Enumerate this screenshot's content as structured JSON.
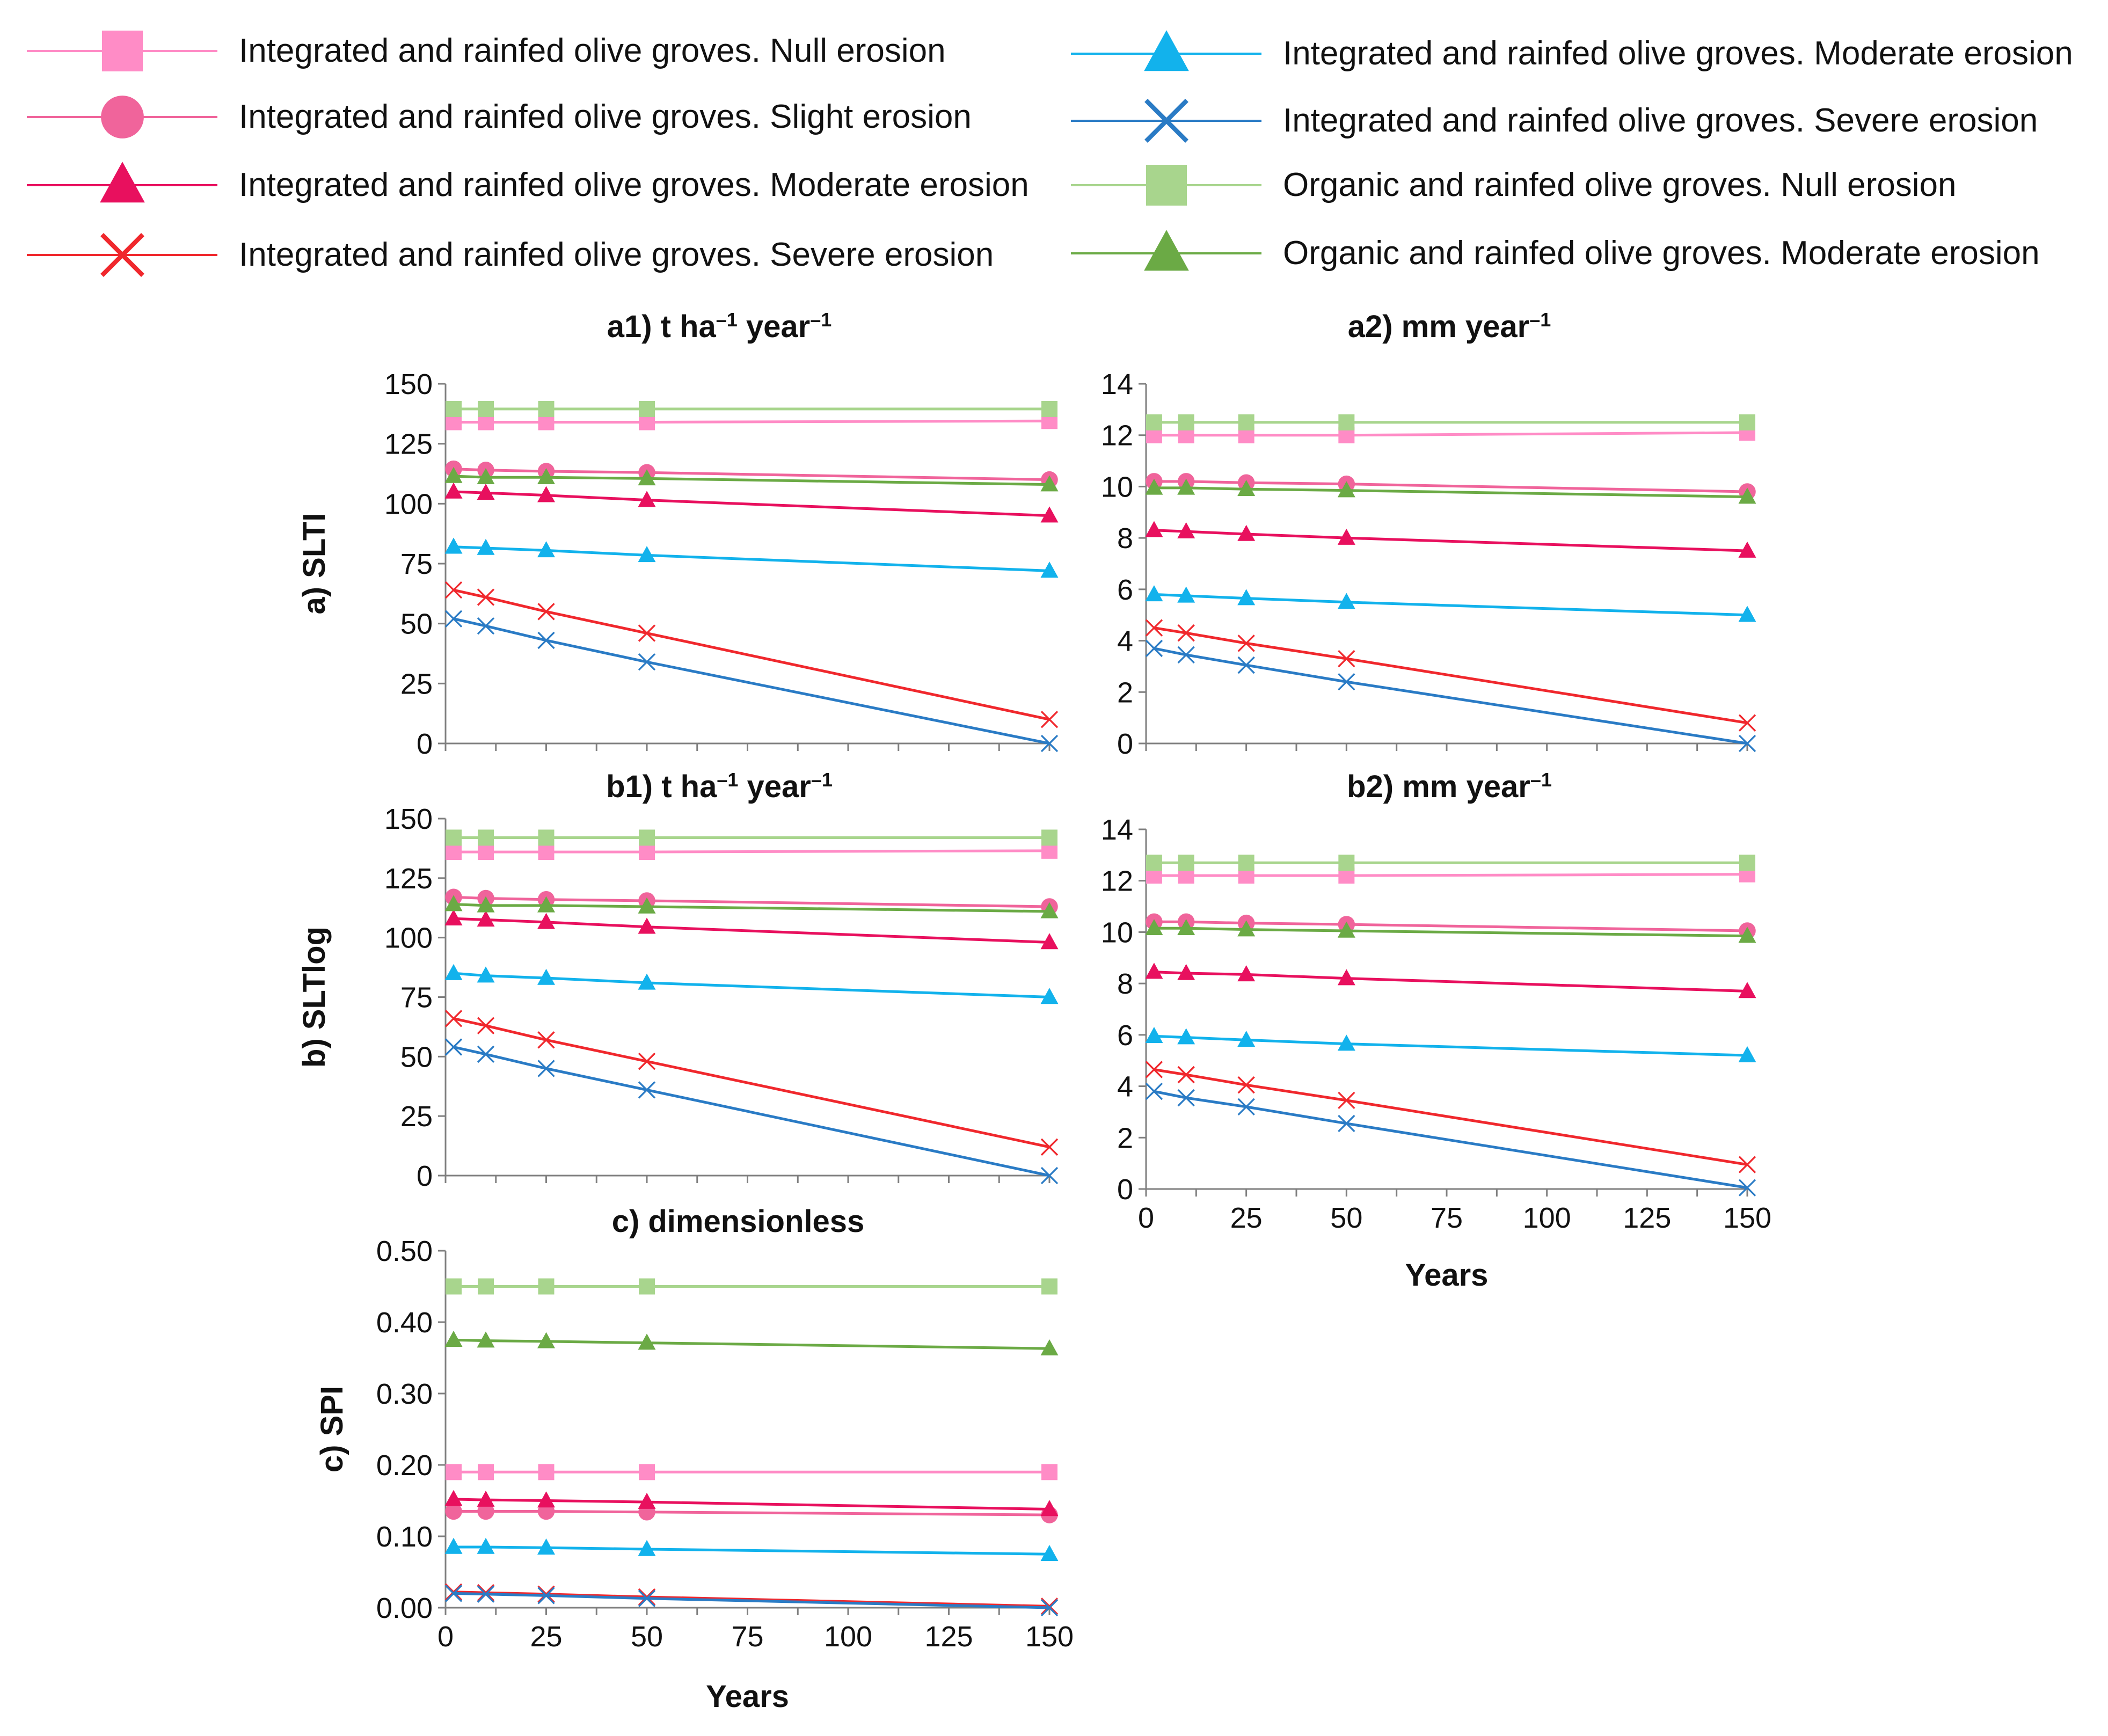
{
  "legend": [
    {
      "id": "int_null",
      "label": "Integrated and rainfed olive groves. Null erosion",
      "color": "#FF8CC6",
      "marker": "square"
    },
    {
      "id": "int_slight",
      "label": "Integrated and rainfed olive groves. Slight erosion",
      "color": "#F0649B",
      "marker": "circle"
    },
    {
      "id": "int_moderate",
      "label": "Integrated and rainfed olive groves. Moderate erosion",
      "color": "#E8105E",
      "marker": "triangle"
    },
    {
      "id": "int_severe",
      "label": "Integrated and rainfed olive groves. Severe erosion",
      "color": "#F0282D",
      "marker": "x"
    },
    {
      "id": "int_moderate2",
      "label": "Integrated and rainfed olive groves. Moderate erosion",
      "color": "#12B2EC",
      "marker": "triangle"
    },
    {
      "id": "int_severe2",
      "label": "Integrated and rainfed olive groves. Severe erosion",
      "color": "#2A7BC5",
      "marker": "x"
    },
    {
      "id": "org_null",
      "label": "Organic and rainfed olive groves. Null erosion",
      "color": "#A8D58D",
      "marker": "square"
    },
    {
      "id": "org_moderate",
      "label": "Organic and rainfed olive groves. Moderate erosion",
      "color": "#6BAA45",
      "marker": "triangle"
    }
  ],
  "chart_data": [
    {
      "id": "a1",
      "type": "line",
      "title": "a1) t ha",
      "title_sup1": "–1",
      "title_mid": " year",
      "title_sup2": "–1",
      "ylabel": "a) SLTI",
      "xlabel": "",
      "x": [
        2,
        10,
        25,
        50,
        150
      ],
      "xlim": [
        0,
        150
      ],
      "ylim": [
        0,
        150
      ],
      "yticks": [
        0,
        25,
        50,
        75,
        100,
        125,
        150
      ],
      "ytick_labels": [
        "0",
        "25",
        "50",
        "75",
        "100",
        "125",
        "150"
      ],
      "xticks": [],
      "xtick_labels": [],
      "series": [
        {
          "ref": "int_null",
          "values": [
            134,
            134,
            134,
            134,
            134.5
          ]
        },
        {
          "ref": "int_slight",
          "values": [
            114.5,
            114,
            113.5,
            113,
            110
          ]
        },
        {
          "ref": "int_moderate",
          "values": [
            105,
            104.5,
            103.5,
            101.5,
            95
          ]
        },
        {
          "ref": "int_severe",
          "values": [
            64,
            61,
            55,
            46,
            10
          ]
        },
        {
          "ref": "int_moderate2",
          "values": [
            82,
            81.5,
            80.5,
            78.5,
            72
          ]
        },
        {
          "ref": "int_severe2",
          "values": [
            52,
            49,
            43,
            34,
            0
          ]
        },
        {
          "ref": "org_null",
          "values": [
            139.5,
            139.5,
            139.5,
            139.5,
            139.5
          ]
        },
        {
          "ref": "org_moderate",
          "values": [
            111.5,
            111,
            111,
            110.5,
            108
          ]
        }
      ]
    },
    {
      "id": "a2",
      "type": "line",
      "title": "a2) mm year",
      "title_sup1": "–1",
      "title_mid": "",
      "title_sup2": "",
      "ylabel": "",
      "xlabel": "",
      "x": [
        2,
        10,
        25,
        50,
        150
      ],
      "xlim": [
        0,
        150
      ],
      "ylim": [
        0,
        14
      ],
      "yticks": [
        0,
        2,
        4,
        6,
        8,
        10,
        12,
        14
      ],
      "ytick_labels": [
        "0",
        "2",
        "4",
        "6",
        "8",
        "10",
        "12",
        "14"
      ],
      "xticks": [],
      "xtick_labels": [],
      "series": [
        {
          "ref": "int_null",
          "values": [
            12.0,
            12.0,
            12.0,
            12.0,
            12.1
          ]
        },
        {
          "ref": "int_slight",
          "values": [
            10.2,
            10.2,
            10.15,
            10.1,
            9.8
          ]
        },
        {
          "ref": "int_moderate",
          "values": [
            8.3,
            8.25,
            8.15,
            8.0,
            7.5
          ]
        },
        {
          "ref": "int_severe",
          "values": [
            4.5,
            4.3,
            3.9,
            3.3,
            0.8
          ]
        },
        {
          "ref": "int_moderate2",
          "values": [
            5.8,
            5.75,
            5.65,
            5.5,
            5.0
          ]
        },
        {
          "ref": "int_severe2",
          "values": [
            3.7,
            3.45,
            3.05,
            2.4,
            0
          ]
        },
        {
          "ref": "org_null",
          "values": [
            12.5,
            12.5,
            12.5,
            12.5,
            12.5
          ]
        },
        {
          "ref": "org_moderate",
          "values": [
            9.95,
            9.95,
            9.9,
            9.85,
            9.6
          ]
        }
      ]
    },
    {
      "id": "b1",
      "type": "line",
      "title": "b1) t ha",
      "title_sup1": "–1",
      "title_mid": " year",
      "title_sup2": "–1",
      "ylabel": "b) SLTlog",
      "xlabel": "",
      "x": [
        2,
        10,
        25,
        50,
        150
      ],
      "xlim": [
        0,
        150
      ],
      "ylim": [
        0,
        150
      ],
      "yticks": [
        0,
        25,
        50,
        75,
        100,
        125,
        150
      ],
      "ytick_labels": [
        "0",
        "25",
        "50",
        "75",
        "100",
        "125",
        "150"
      ],
      "xticks": [],
      "xtick_labels": [],
      "series": [
        {
          "ref": "int_null",
          "values": [
            136,
            136,
            136,
            136,
            136.5
          ]
        },
        {
          "ref": "int_slight",
          "values": [
            117,
            116.5,
            116,
            115.5,
            113
          ]
        },
        {
          "ref": "int_moderate",
          "values": [
            108,
            107.5,
            106.5,
            104.5,
            98
          ]
        },
        {
          "ref": "int_severe",
          "values": [
            66,
            63,
            57,
            48,
            12
          ]
        },
        {
          "ref": "int_moderate2",
          "values": [
            85,
            84,
            83,
            81,
            75
          ]
        },
        {
          "ref": "int_severe2",
          "values": [
            54,
            51,
            45,
            36,
            0
          ]
        },
        {
          "ref": "org_null",
          "values": [
            142,
            142,
            142,
            142,
            142
          ]
        },
        {
          "ref": "org_moderate",
          "values": [
            114,
            113.5,
            113.5,
            113,
            111
          ]
        }
      ]
    },
    {
      "id": "b2",
      "type": "line",
      "title": "b2) mm year",
      "title_sup1": "–1",
      "title_mid": "",
      "title_sup2": "",
      "ylabel": "",
      "xlabel": "Years",
      "x": [
        2,
        10,
        25,
        50,
        150
      ],
      "xlim": [
        0,
        150
      ],
      "ylim": [
        0,
        14
      ],
      "yticks": [
        0,
        2,
        4,
        6,
        8,
        10,
        12,
        14
      ],
      "ytick_labels": [
        "0",
        "2",
        "4",
        "6",
        "8",
        "10",
        "12",
        "14"
      ],
      "xticks": [
        0,
        25,
        50,
        75,
        100,
        125,
        150
      ],
      "xtick_labels": [
        "0",
        "25",
        "50",
        "75",
        "100",
        "125",
        "150"
      ],
      "series": [
        {
          "ref": "int_null",
          "values": [
            12.2,
            12.2,
            12.2,
            12.2,
            12.25
          ]
        },
        {
          "ref": "int_slight",
          "values": [
            10.4,
            10.4,
            10.35,
            10.3,
            10.05
          ]
        },
        {
          "ref": "int_moderate",
          "values": [
            8.45,
            8.4,
            8.35,
            8.2,
            7.7
          ]
        },
        {
          "ref": "int_severe",
          "values": [
            4.65,
            4.45,
            4.05,
            3.45,
            0.95
          ]
        },
        {
          "ref": "int_moderate2",
          "values": [
            5.95,
            5.9,
            5.8,
            5.65,
            5.2
          ]
        },
        {
          "ref": "int_severe2",
          "values": [
            3.8,
            3.55,
            3.2,
            2.55,
            0.05
          ]
        },
        {
          "ref": "org_null",
          "values": [
            12.7,
            12.7,
            12.7,
            12.7,
            12.7
          ]
        },
        {
          "ref": "org_moderate",
          "values": [
            10.15,
            10.15,
            10.1,
            10.05,
            9.85
          ]
        }
      ]
    },
    {
      "id": "c",
      "type": "line",
      "title": "c) dimensionless",
      "title_sup1": "",
      "title_mid": "",
      "title_sup2": "",
      "ylabel": "c) SPI",
      "xlabel": "Years",
      "x": [
        2,
        10,
        25,
        50,
        150
      ],
      "xlim": [
        0,
        150
      ],
      "ylim": [
        0,
        0.5
      ],
      "yticks": [
        0,
        0.1,
        0.2,
        0.3,
        0.4,
        0.5
      ],
      "ytick_labels": [
        "0.00",
        "0.10",
        "0.20",
        "0.30",
        "0.40",
        "0.50"
      ],
      "xticks": [
        0,
        25,
        50,
        75,
        100,
        125,
        150
      ],
      "xtick_labels": [
        "0",
        "25",
        "50",
        "75",
        "100",
        "125",
        "150"
      ],
      "series": [
        {
          "ref": "int_null",
          "values": [
            0.19,
            0.19,
            0.19,
            0.19,
            0.19
          ]
        },
        {
          "ref": "int_slight",
          "values": [
            0.135,
            0.135,
            0.135,
            0.134,
            0.13
          ]
        },
        {
          "ref": "int_moderate",
          "values": [
            0.152,
            0.151,
            0.15,
            0.148,
            0.138
          ]
        },
        {
          "ref": "int_severe",
          "values": [
            0.022,
            0.021,
            0.019,
            0.015,
            0.002
          ]
        },
        {
          "ref": "int_moderate2",
          "values": [
            0.085,
            0.085,
            0.084,
            0.082,
            0.075
          ]
        },
        {
          "ref": "int_severe2",
          "values": [
            0.02,
            0.019,
            0.017,
            0.013,
            0.0
          ]
        },
        {
          "ref": "org_null",
          "values": [
            0.45,
            0.45,
            0.45,
            0.45,
            0.45
          ]
        },
        {
          "ref": "org_moderate",
          "values": [
            0.375,
            0.374,
            0.373,
            0.371,
            0.363
          ]
        }
      ]
    }
  ]
}
